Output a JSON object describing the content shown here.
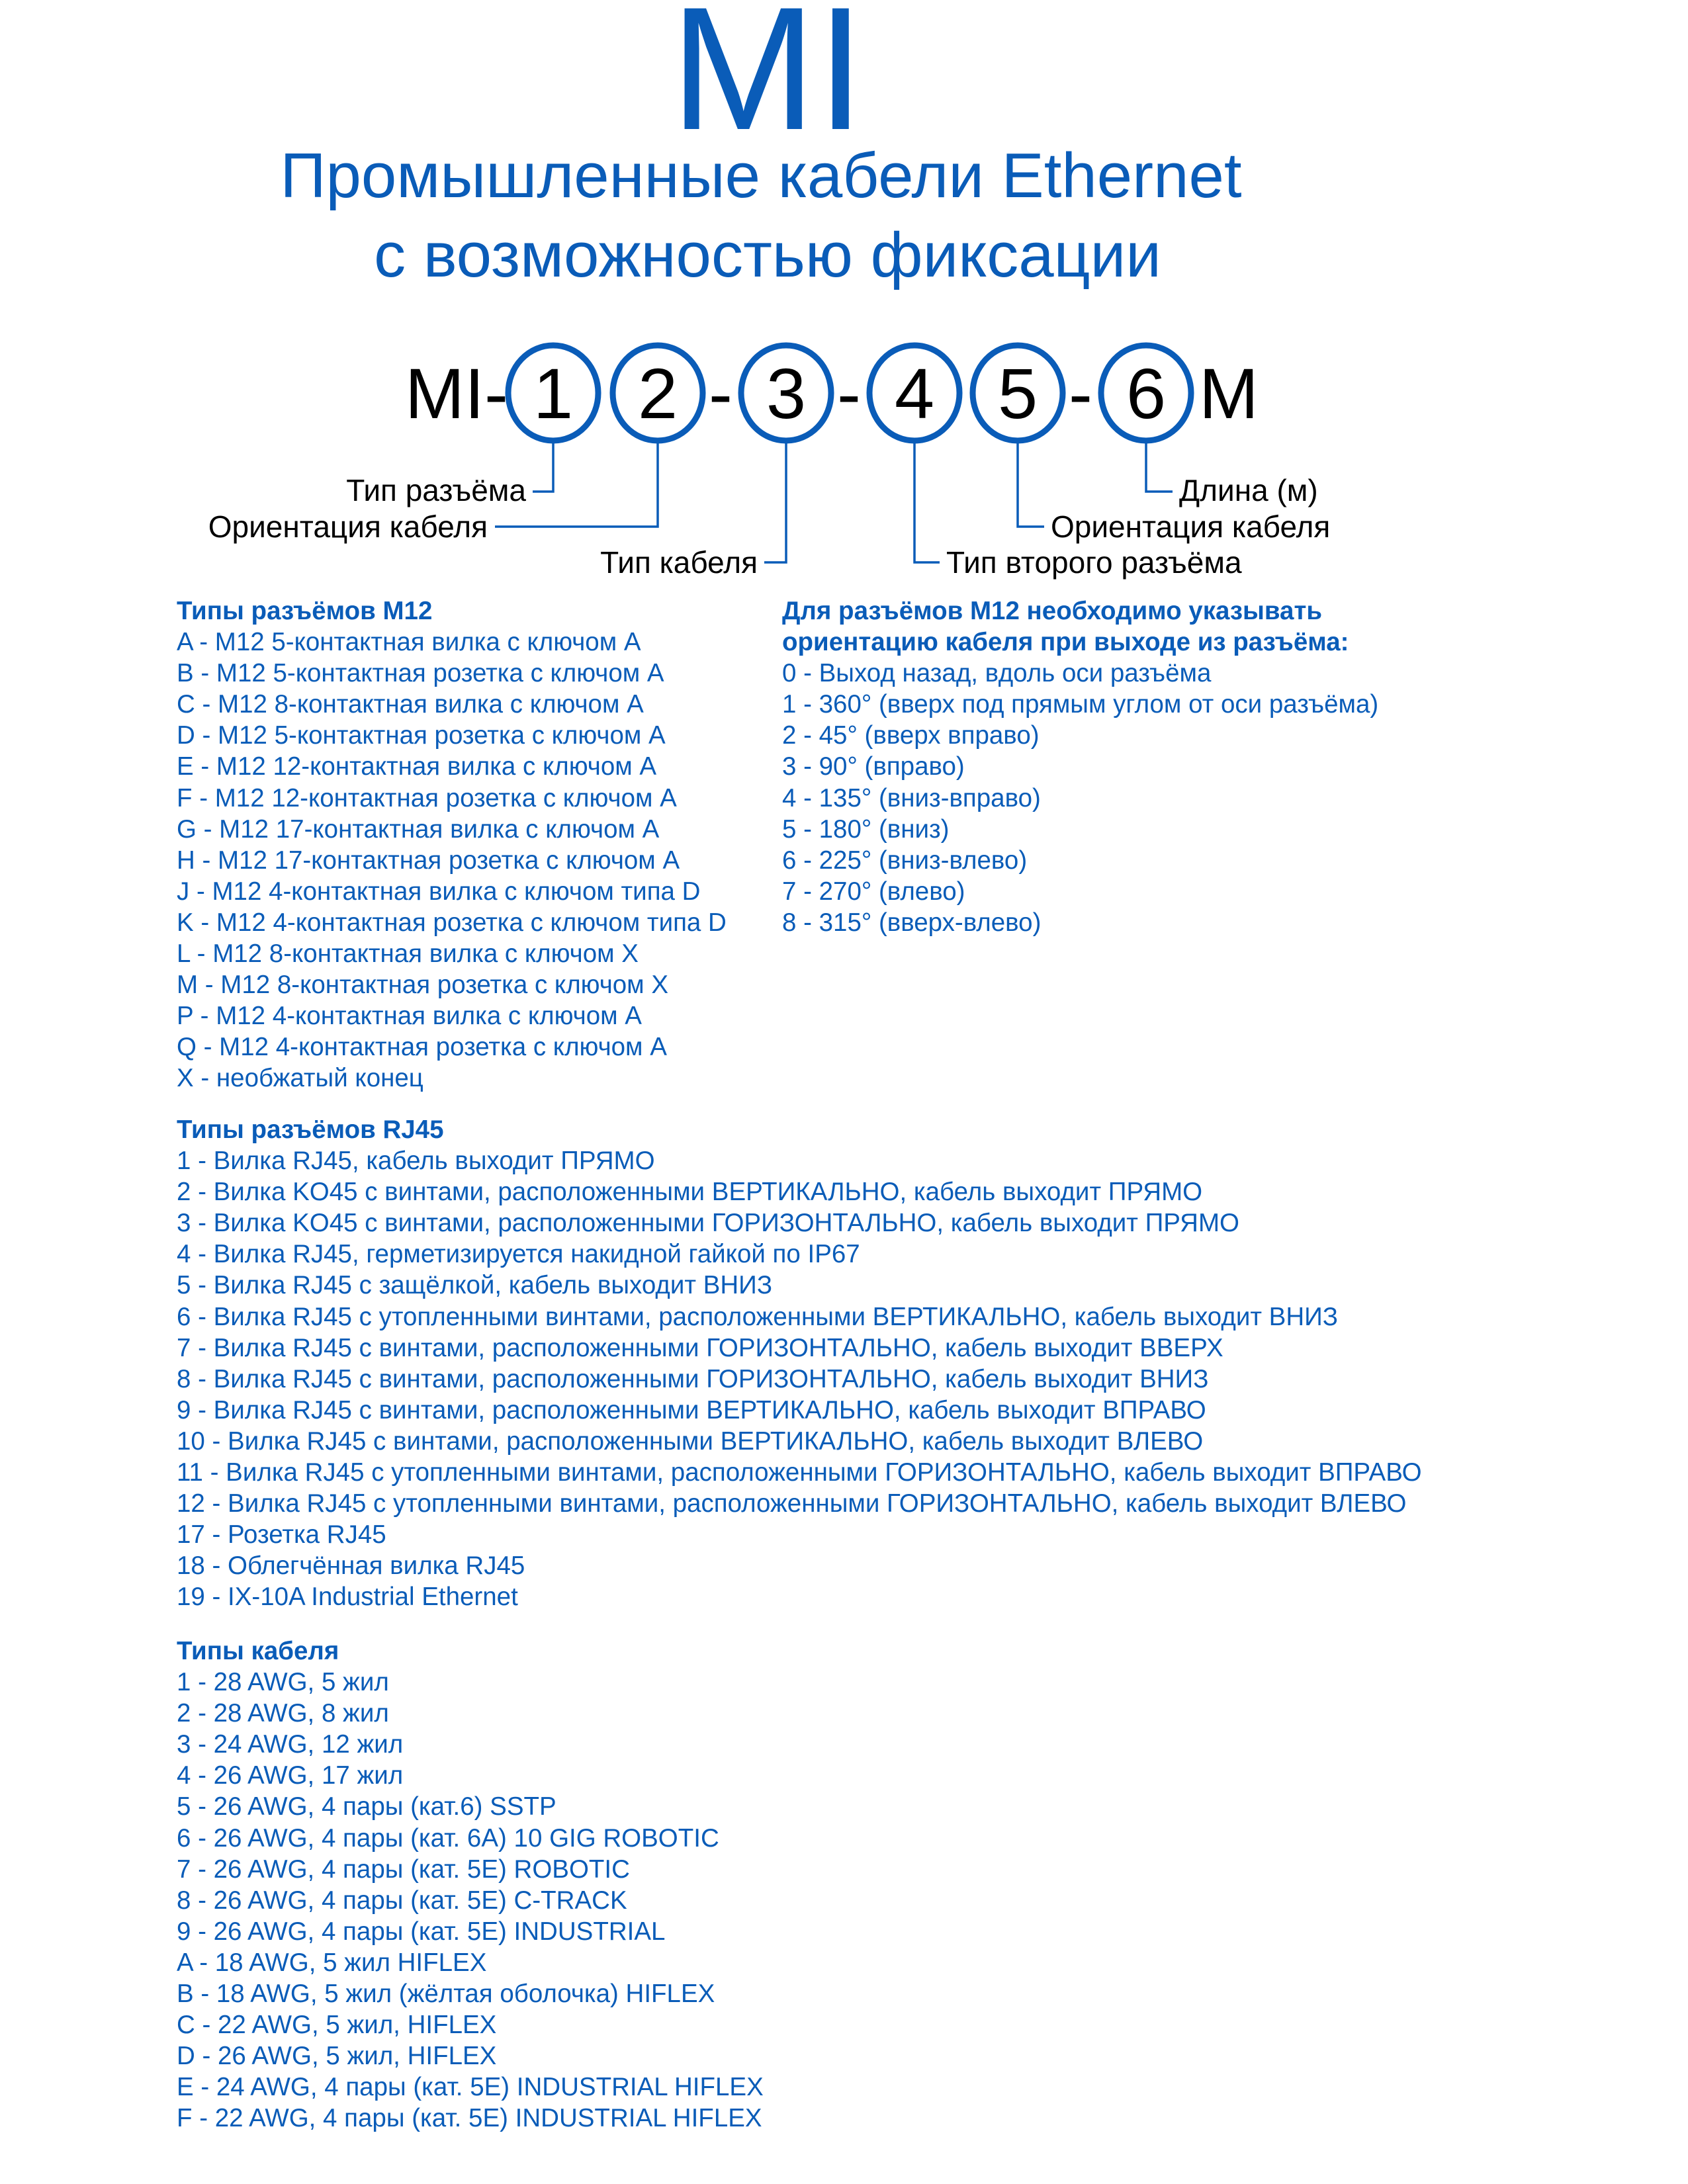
{
  "brand": "MI",
  "title_line1": "Промышленные кабели Ethernet",
  "title_line2": "с возможностью фиксации",
  "code": {
    "prefix": "MI-",
    "positions": [
      "1",
      "2",
      "3",
      "4",
      "5",
      "6"
    ],
    "separator": "-",
    "suffix": "M",
    "labels": {
      "p1": "Тип разъёма",
      "p2": "Ориентация кабеля",
      "p3": "Тип кабеля",
      "p4": "Тип второго разъёма",
      "p5": "Ориентация кабеля",
      "p6": "Длина (м)"
    }
  },
  "colors": {
    "accent": "#0a5cb8",
    "text": "#000000"
  },
  "m12": {
    "heading": "Типы разъёмов M12",
    "items": [
      "A - M12 5-контактная вилка с ключом A",
      "B - M12 5-контактная розетка с ключом A",
      "C - M12 8-контактная вилка с ключом A",
      "D - M12 5-контактная розетка с ключом A",
      "E - M12 12-контактная вилка с ключом A",
      "F - M12 12-контактная розетка с ключом A",
      "G - M12 17-контактная вилка с ключом A",
      "H - M12 17-контактная розетка с ключом A",
      "J - M12 4-контактная вилка с ключом типа D",
      "K - M12 4-контактная розетка с ключом типа D",
      "L - M12 8-контактная вилка с ключом X",
      "M - M12 8-контактная розетка с ключом X",
      "P - M12 4-контактная вилка с ключом A",
      "Q - M12 4-контактная розетка с ключом A",
      "X - необжатый конец"
    ]
  },
  "orientation": {
    "heading_line1": "Для разъёмов M12 необходимо указывать",
    "heading_line2": "ориентацию кабеля при выходе из разъёма:",
    "items": [
      "0 - Выход назад, вдоль оси разъёма",
      "1 - 360° (вверх под прямым углом от оси разъёма)",
      "2 - 45° (вверх вправо)",
      "3 - 90° (вправо)",
      "4 - 135° (вниз-вправо)",
      "5 - 180° (вниз)",
      "6 - 225° (вниз-влево)",
      "7 - 270° (влево)",
      "8 - 315° (вверх-влево)"
    ]
  },
  "rj45": {
    "heading": "Типы разъёмов RJ45",
    "items": [
      "1 - Вилка RJ45, кабель выходит ПРЯМО",
      "2 - Вилка KO45 с винтами, расположенными ВЕРТИКАЛЬНО, кабель выходит ПРЯМО",
      "3 - Вилка KO45 с винтами, расположенными ГОРИЗОНТАЛЬНО, кабель выходит ПРЯМО",
      "4 - Вилка RJ45, герметизируется накидной гайкой по IP67",
      "5 - Вилка RJ45 с защёлкой, кабель выходит ВНИЗ",
      "6 - Вилка RJ45 с утопленными винтами, расположенными ВЕРТИКАЛЬНО, кабель выходит ВНИЗ",
      "7 - Вилка RJ45 с винтами, расположенными ГОРИЗОНТАЛЬНО, кабель выходит ВВЕРХ",
      "8 - Вилка RJ45 с винтами, расположенными ГОРИЗОНТАЛЬНО, кабель выходит ВНИЗ",
      "9 - Вилка RJ45 с винтами, расположенными ВЕРТИКАЛЬНО, кабель выходит ВПРАВО",
      "10 - Вилка RJ45 с винтами, расположенными ВЕРТИКАЛЬНО, кабель выходит ВЛЕВО",
      "11 - Вилка RJ45 с утопленными винтами, расположенными ГОРИЗОНТАЛЬНО, кабель выходит ВПРАВО",
      "12 - Вилка RJ45 с утопленными винтами, расположенными ГОРИЗОНТАЛЬНО, кабель выходит ВЛЕВО",
      "17 - Розетка RJ45",
      "18 - Облегчённая вилка RJ45",
      "19 - IX-10A Industrial Ethernet"
    ]
  },
  "cable": {
    "heading": "Типы кабеля",
    "items": [
      "1 - 28 AWG, 5 жил",
      "2 - 28 AWG, 8 жил",
      "3 - 24 AWG, 12 жил",
      "4 - 26 AWG, 17 жил",
      "5 - 26 AWG, 4 пары (кат.6) SSTP",
      "6 - 26 AWG, 4 пары (кат. 6A) 10 GIG ROBOTIC",
      "7 - 26 AWG, 4 пары (кат. 5E) ROBOTIC",
      "8 - 26 AWG, 4 пары (кат. 5E) C-TRACK",
      "9 - 26 AWG, 4 пары (кат. 5E) INDUSTRIAL",
      "A - 18 AWG, 5 жил HIFLEX",
      "B - 18 AWG, 5 жил (жёлтая оболочка) HIFLEX",
      "C - 22 AWG, 5 жил, HIFLEX",
      "D - 26 AWG, 5 жил, HIFLEX",
      "E - 24 AWG, 4 пары (кат.  5E) INDUSTRIAL HIFLEX",
      "F - 22 AWG, 4 пары (кат.  5E) INDUSTRIAL HIFLEX"
    ]
  }
}
